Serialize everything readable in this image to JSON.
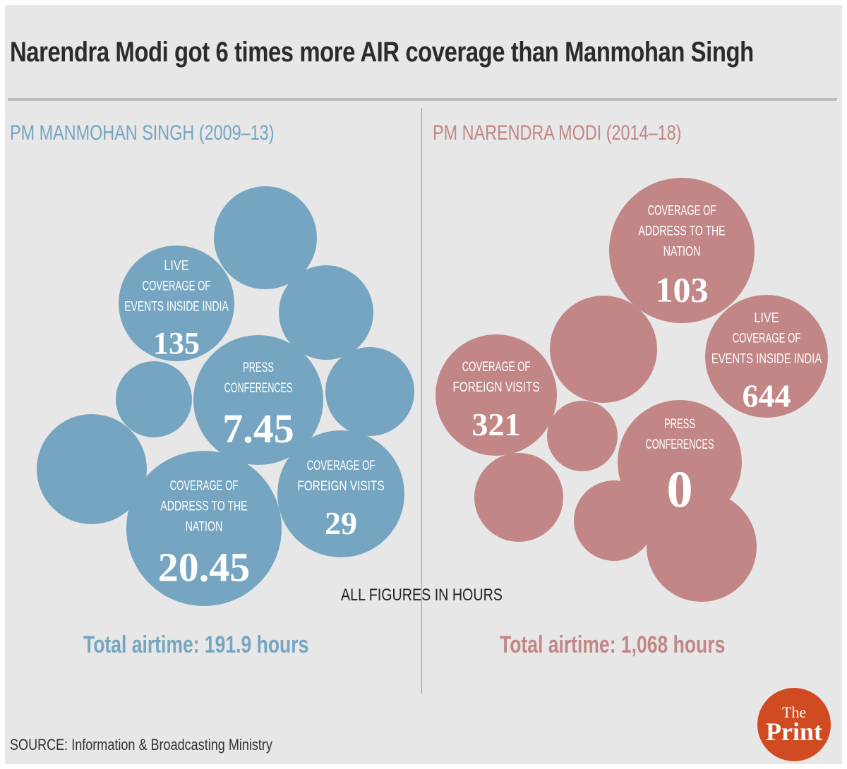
{
  "title": "Narendra Modi got 6 times more AIR coverage than Manmohan Singh",
  "note": "ALL FIGURES IN HOURS",
  "source": "SOURCE: Information & Broadcasting Ministry",
  "logo": {
    "line1": "The",
    "line2": "Print"
  },
  "colors": {
    "manmohan": "#75a5c1",
    "modi": "#c28686",
    "logo": "#d04a22"
  },
  "chart_data": {
    "type": "bubble",
    "title": "Narendra Modi got 6 times more AIR coverage than Manmohan Singh",
    "unit": "hours",
    "panels": [
      {
        "id": "manmohan",
        "header": "PM MANMOHAN SINGH (2009–13)",
        "total_label": "Total airtime: 191.9 hours",
        "total": 191.9,
        "categories": [
          {
            "label": [
              "LIVE",
              "COVERAGE OF",
              "EVENTS INSIDE INDIA"
            ],
            "value": 135,
            "display": "135"
          },
          {
            "label": [
              "PRESS",
              "CONFERENCES"
            ],
            "value": 7.45,
            "display": "7.45"
          },
          {
            "label": [
              "COVERAGE OF",
              "ADDRESS TO THE",
              "NATION"
            ],
            "value": 20.45,
            "display": "20.45"
          },
          {
            "label": [
              "COVERAGE OF",
              "FOREIGN VISITS"
            ],
            "value": 29,
            "display": "29"
          }
        ],
        "unlabeled_bubbles": 6
      },
      {
        "id": "modi",
        "header": "PM NARENDRA MODI (2014–18)",
        "total_label": "Total airtime: 1,068 hours",
        "total": 1068,
        "categories": [
          {
            "label": [
              "COVERAGE OF",
              "ADDRESS TO THE",
              "NATION"
            ],
            "value": 103,
            "display": "103"
          },
          {
            "label": [
              "LIVE",
              "COVERAGE OF",
              "EVENTS INSIDE INDIA"
            ],
            "value": 644,
            "display": "644"
          },
          {
            "label": [
              "COVERAGE OF",
              "FOREIGN VISITS"
            ],
            "value": 321,
            "display": "321"
          },
          {
            "label": [
              "PRESS",
              "CONFERENCES"
            ],
            "value": 0,
            "display": "0"
          }
        ],
        "unlabeled_bubbles": 6
      }
    ]
  }
}
